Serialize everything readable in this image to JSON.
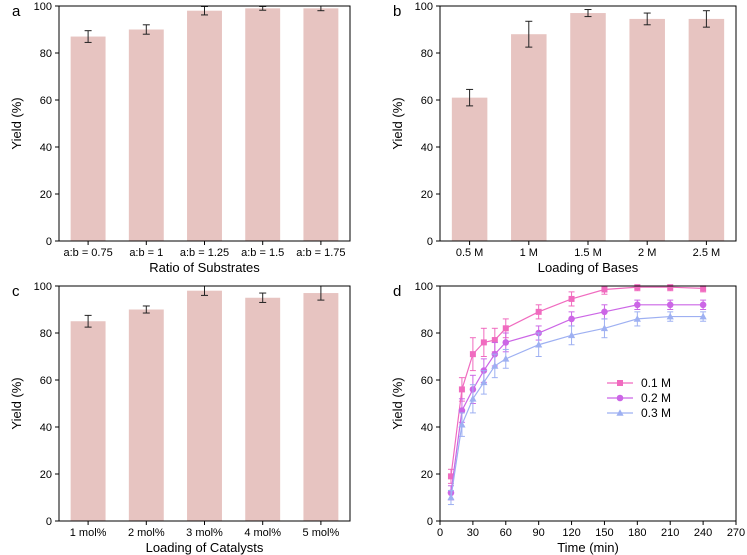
{
  "chart_data": [
    {
      "panel": "a",
      "type": "bar",
      "categories": [
        "a:b = 0.75",
        "a:b = 1",
        "a:b = 1.25",
        "a:b = 1.5",
        "a:b = 1.75"
      ],
      "values": [
        87,
        90,
        98,
        99,
        99
      ],
      "errors": [
        2.5,
        2,
        1.8,
        0.8,
        1
      ],
      "xlabel": "Ratio of Substrates",
      "ylabel": "Yield (%)",
      "ylim": [
        0,
        100
      ],
      "yticks": [
        0,
        20,
        40,
        60,
        80,
        100
      ],
      "bar_color": "#e7c4c1"
    },
    {
      "panel": "b",
      "type": "bar",
      "categories": [
        "0.5 M",
        "1 M",
        "1.5 M",
        "2 M",
        "2.5 M"
      ],
      "values": [
        61,
        88,
        97,
        94.5,
        94.5
      ],
      "errors": [
        3.5,
        5.5,
        1.5,
        2.5,
        3.5
      ],
      "xlabel": "Loading of Bases",
      "ylabel": "Yield (%)",
      "ylim": [
        0,
        100
      ],
      "yticks": [
        0,
        20,
        40,
        60,
        80,
        100
      ],
      "bar_color": "#e7c4c1"
    },
    {
      "panel": "c",
      "type": "bar",
      "categories": [
        "1 mol%",
        "2 mol%",
        "3 mol%",
        "4 mol%",
        "5 mol%"
      ],
      "values": [
        85,
        90,
        98,
        95,
        97
      ],
      "errors": [
        2.5,
        1.5,
        2,
        2,
        3
      ],
      "xlabel": "Loading of Catalysts",
      "ylabel": "Yield (%)",
      "ylim": [
        0,
        100
      ],
      "yticks": [
        0,
        20,
        40,
        60,
        80,
        100
      ],
      "bar_color": "#e7c4c1"
    },
    {
      "panel": "d",
      "type": "line",
      "x": [
        10,
        20,
        30,
        40,
        50,
        60,
        90,
        120,
        150,
        180,
        210,
        240
      ],
      "series": [
        {
          "name": "0.1 M",
          "color": "#f06bbf",
          "marker": "square",
          "values": [
            19,
            56,
            71,
            76,
            77,
            82,
            89,
            94.5,
            98.5,
            99.5,
            99.5,
            99
          ],
          "errors": [
            3,
            5,
            7,
            6,
            5,
            4,
            3,
            3,
            2,
            1.5,
            1.5,
            1.5
          ]
        },
        {
          "name": "0.2 M",
          "color": "#cc66e6",
          "marker": "circle",
          "values": [
            12,
            47,
            56,
            64,
            71,
            76,
            80,
            86,
            89,
            92,
            92,
            92
          ],
          "errors": [
            3,
            5,
            6,
            5,
            5,
            4,
            3,
            3,
            3,
            2,
            2,
            2
          ]
        },
        {
          "name": "0.3 M",
          "color": "#9eb0f2",
          "marker": "triangle",
          "values": [
            10,
            41,
            52,
            59,
            66,
            69,
            75,
            79,
            82,
            86,
            87,
            87
          ],
          "errors": [
            3,
            5,
            6,
            5,
            5,
            4,
            5,
            4,
            4,
            3,
            2,
            2
          ]
        }
      ],
      "xlabel": "Time (min)",
      "ylabel": "Yield (%)",
      "xlim": [
        0,
        270
      ],
      "ylim": [
        0,
        100
      ],
      "xticks": [
        0,
        30,
        60,
        90,
        120,
        150,
        180,
        210,
        240,
        270
      ],
      "yticks": [
        0,
        20,
        40,
        60,
        80,
        100
      ],
      "legend_position": "middle-right"
    }
  ]
}
